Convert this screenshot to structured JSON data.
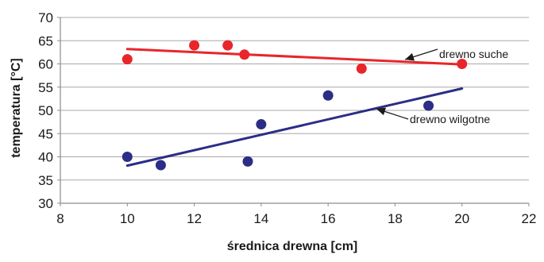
{
  "chart_data": {
    "type": "scatter",
    "xlabel": "średnica drewna [cm]",
    "ylabel": "temperatura [°C]",
    "xlim": [
      8,
      22
    ],
    "ylim": [
      30,
      70
    ],
    "x_ticks": [
      8,
      10,
      12,
      14,
      16,
      18,
      20,
      22
    ],
    "y_ticks": [
      30,
      35,
      40,
      45,
      50,
      55,
      60,
      65,
      70
    ],
    "grid": true,
    "legend": "none",
    "series": [
      {
        "name": "drewno suche",
        "color": "#e8262a",
        "points": [
          [
            10,
            61
          ],
          [
            12,
            64
          ],
          [
            13,
            64
          ],
          [
            13.5,
            62
          ],
          [
            17,
            59
          ],
          [
            20,
            60
          ]
        ],
        "trendline": [
          [
            10,
            63.2
          ],
          [
            20,
            59.9
          ]
        ]
      },
      {
        "name": "drewno wilgotne",
        "color": "#2b2d86",
        "points": [
          [
            10,
            40
          ],
          [
            11,
            38.2
          ],
          [
            13.6,
            39
          ],
          [
            14,
            47
          ],
          [
            16,
            53.2
          ],
          [
            19,
            51
          ]
        ],
        "trendline": [
          [
            10,
            38.1
          ],
          [
            20,
            54.7
          ]
        ]
      }
    ],
    "annotations": [
      {
        "text": "drewno suche",
        "series": 0,
        "x": 18.1,
        "y": 61.3
      },
      {
        "text": "drewno wilgotne",
        "series": 1,
        "x": 17.3,
        "y": 48.8
      }
    ]
  }
}
